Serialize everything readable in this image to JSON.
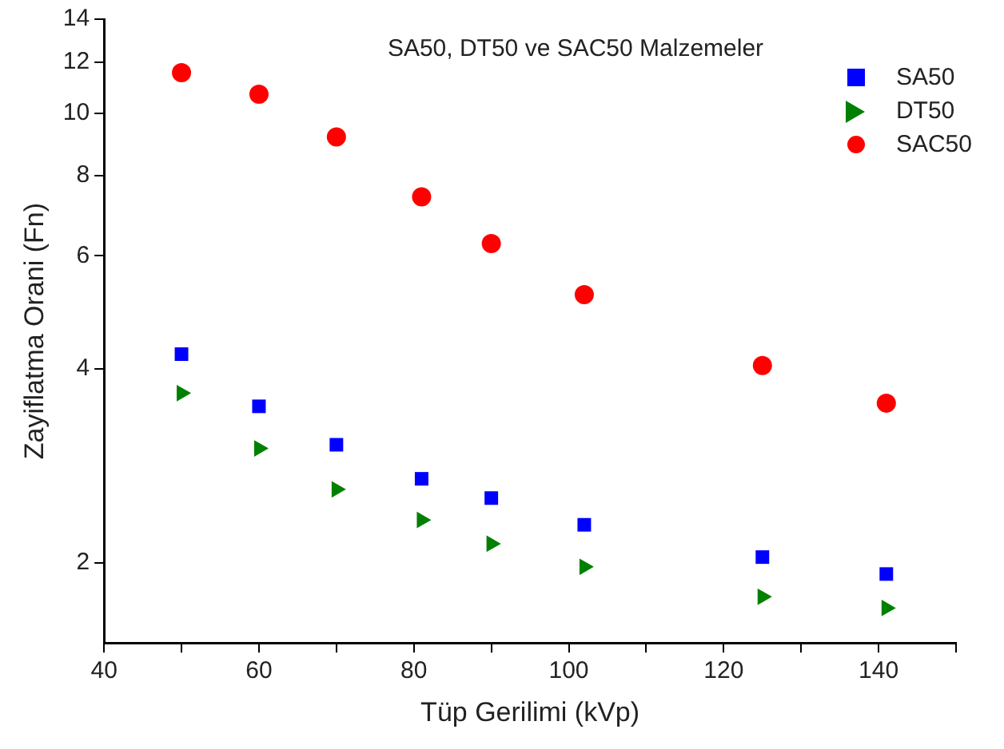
{
  "chart_data": {
    "type": "scatter",
    "title": "SA50, DT50 ve SAC50 Malzemeler",
    "xlabel": "Tüp Gerilimi (kVp)",
    "ylabel": "Zayiflatma Orani (Fn)",
    "x": [
      50,
      60,
      70,
      81,
      90,
      102,
      125,
      141
    ],
    "series": [
      {
        "name": "SA50",
        "color": "#0000ff",
        "marker": "square",
        "values": [
          4.22,
          3.5,
          3.05,
          2.7,
          2.52,
          2.29,
          2.04,
          1.92
        ]
      },
      {
        "name": "DT50",
        "color": "#008000",
        "marker": "triangle",
        "values": [
          3.67,
          3.01,
          2.6,
          2.33,
          2.14,
          1.97,
          1.77,
          1.7
        ]
      },
      {
        "name": "SAC50",
        "color": "#ff0000",
        "marker": "circle",
        "values": [
          11.56,
          10.7,
          9.18,
          7.41,
          6.27,
          5.22,
          4.05,
          3.54
        ]
      }
    ],
    "xlim": [
      40,
      150
    ],
    "xticks": [
      40,
      {
        "value": 50,
        "label": null
      },
      60,
      {
        "value": 70,
        "label": null
      },
      80,
      {
        "value": 90,
        "label": null
      },
      100,
      {
        "value": 110,
        "label": null
      },
      120,
      {
        "value": 130,
        "label": null
      },
      140,
      {
        "value": 150,
        "label": null
      }
    ],
    "ylim": [
      1.5,
      14
    ],
    "yticks": [
      2,
      4,
      6,
      8,
      10,
      12,
      14
    ],
    "log": "y",
    "grid": false,
    "legend": "top right"
  }
}
